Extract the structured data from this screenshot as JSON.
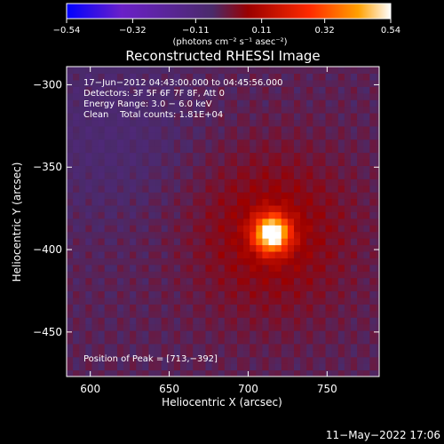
{
  "colorbar": {
    "ticks": [
      -0.54,
      -0.32,
      -0.11,
      0.11,
      0.32,
      0.54
    ],
    "tick_labels": [
      "−0.54",
      "−0.32",
      "−0.11",
      "0.11",
      "0.32",
      "0.54"
    ],
    "range": [
      -0.54,
      0.54
    ],
    "unit_label": "(photons cm⁻² s⁻¹ asec⁻²)",
    "colormap": [
      "#0000ff",
      "#6a20c8",
      "#4a2a6a",
      "#9a0000",
      "#ff2a00",
      "#ffa000",
      "#ffffff"
    ]
  },
  "chart_data": {
    "type": "heatmap",
    "title": "Reconstructed RHESSI Image",
    "xlabel": "Heliocentric X (arcsec)",
    "ylabel": "Heliocentric Y (arcsec)",
    "xlim": [
      585,
      783
    ],
    "ylim": [
      -477,
      -289
    ],
    "x_ticks": [
      600,
      650,
      700,
      750
    ],
    "y_ticks": [
      -300,
      -350,
      -400,
      -450
    ],
    "x_tick_labels": [
      "600",
      "650",
      "700",
      "750"
    ],
    "y_tick_labels": [
      "−300",
      "−350",
      "−400",
      "−450"
    ],
    "peak": {
      "x": 713,
      "y": -392
    },
    "annotations": [
      "17−Jun−2012 04:43:00.000 to 04:45:56.000",
      "Detectors: 3F 5F 6F 7F 8F, Att 0",
      "Energy Range: 3.0 − 6.0 keV",
      "Clean    Total counts: 1.81E+04"
    ],
    "peak_label": "Position of Peak = [713,−392]"
  },
  "footer": {
    "date": "11−May−2022 17:06"
  }
}
